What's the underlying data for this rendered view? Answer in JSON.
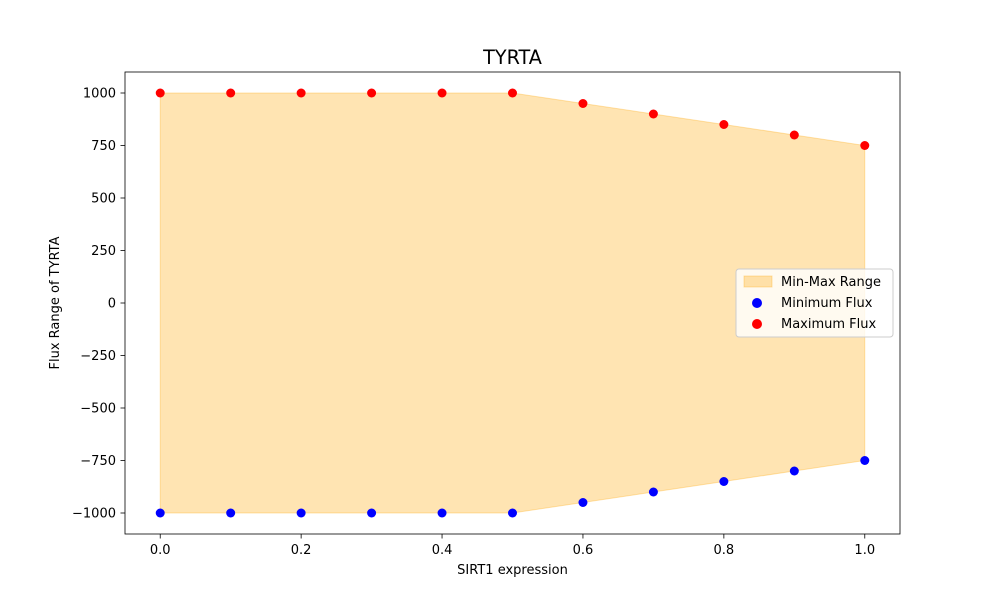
{
  "chart_data": {
    "type": "scatter",
    "title": "TYRTA",
    "xlabel": "SIRT1 expression",
    "ylabel": "Flux Range of TYRTA",
    "xlim": [
      -0.05,
      1.05
    ],
    "ylim": [
      -1100,
      1100
    ],
    "x": [
      0.0,
      0.1,
      0.2,
      0.3,
      0.4,
      0.5,
      0.6,
      0.7,
      0.8,
      0.9,
      1.0
    ],
    "series": [
      {
        "name": "Minimum Flux",
        "color": "#0000ff",
        "values": [
          -1000,
          -1000,
          -1000,
          -1000,
          -1000,
          -1000,
          -950,
          -900,
          -850,
          -800,
          -750
        ]
      },
      {
        "name": "Maximum Flux",
        "color": "#ff0000",
        "values": [
          1000,
          1000,
          1000,
          1000,
          1000,
          1000,
          950,
          900,
          850,
          800,
          750
        ]
      }
    ],
    "range_fill": {
      "name": "Min-Max Range",
      "color": "#ffa500",
      "opacity": 0.3
    },
    "xticks": [
      "0.0",
      "0.2",
      "0.4",
      "0.6",
      "0.8",
      "1.0"
    ],
    "xtick_values": [
      0.0,
      0.2,
      0.4,
      0.6,
      0.8,
      1.0
    ],
    "yticks": [
      "−1000",
      "−750",
      "−500",
      "−250",
      "0",
      "250",
      "500",
      "750",
      "1000"
    ],
    "ytick_values": [
      -1000,
      -750,
      -500,
      -250,
      0,
      250,
      500,
      750,
      1000
    ],
    "legend_position": "center-right",
    "grid": false
  }
}
